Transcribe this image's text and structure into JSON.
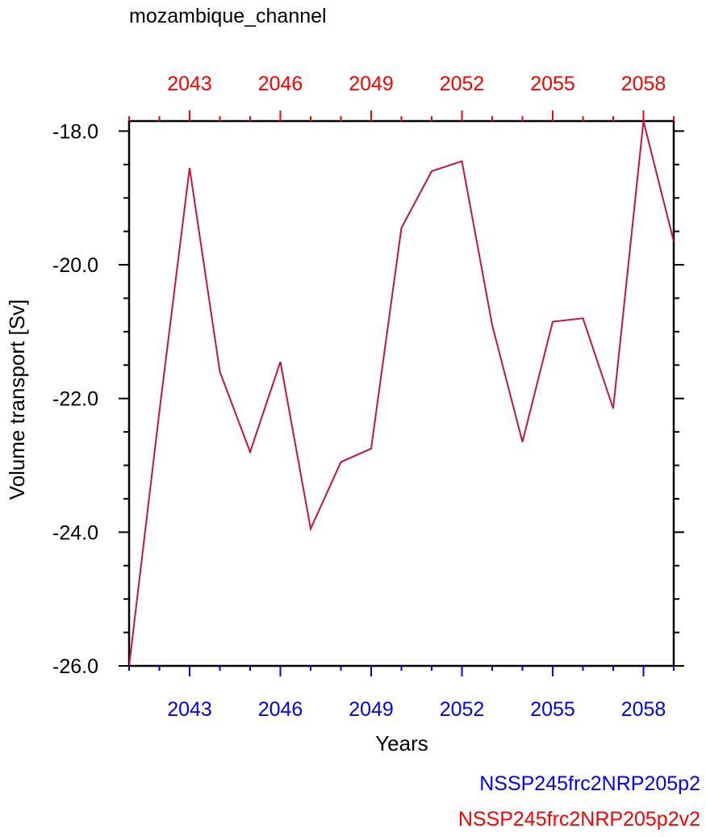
{
  "chart_data": {
    "type": "line",
    "title": "mozambique_channel",
    "xlabel": "Years",
    "ylabel": "Volume transport [Sv]",
    "xlim": [
      2041,
      2059
    ],
    "ylim": [
      -26.0,
      -17.85
    ],
    "x_ticks": [
      2043,
      2046,
      2049,
      2052,
      2055,
      2058
    ],
    "x_tick_labels": [
      "2043",
      "2046",
      "2049",
      "2052",
      "2055",
      "2058"
    ],
    "y_ticks": [
      -26.0,
      -24.0,
      -22.0,
      -20.0,
      -18.0
    ],
    "y_tick_labels": [
      "-26.0",
      "-24.0",
      "-22.0",
      "-20.0",
      "-18.0"
    ],
    "top_axis_color": "#ff0000",
    "bottom_axis_color": "#0000ff",
    "line_color": "#c8143c",
    "series": [
      {
        "x": [
          2041,
          2042,
          2043,
          2044,
          2045,
          2046,
          2047,
          2048,
          2049,
          2050,
          2051,
          2052,
          2053,
          2054,
          2055,
          2056,
          2057,
          2058,
          2059
        ],
        "values": [
          -26.0,
          -22.2,
          -18.55,
          -21.6,
          -22.8,
          -21.45,
          -23.95,
          -22.95,
          -22.75,
          -19.45,
          -18.6,
          -18.45,
          -20.9,
          -22.65,
          -20.85,
          -20.8,
          -22.15,
          -17.85,
          -19.65
        ]
      }
    ],
    "legend": [
      {
        "label": "NSSP245frc2NRP205p2",
        "color": "#0000ff"
      },
      {
        "label": "NSSP245frc2NRP205p2v2",
        "color": "#ff0000"
      }
    ],
    "legend_position": "bottom-right"
  }
}
